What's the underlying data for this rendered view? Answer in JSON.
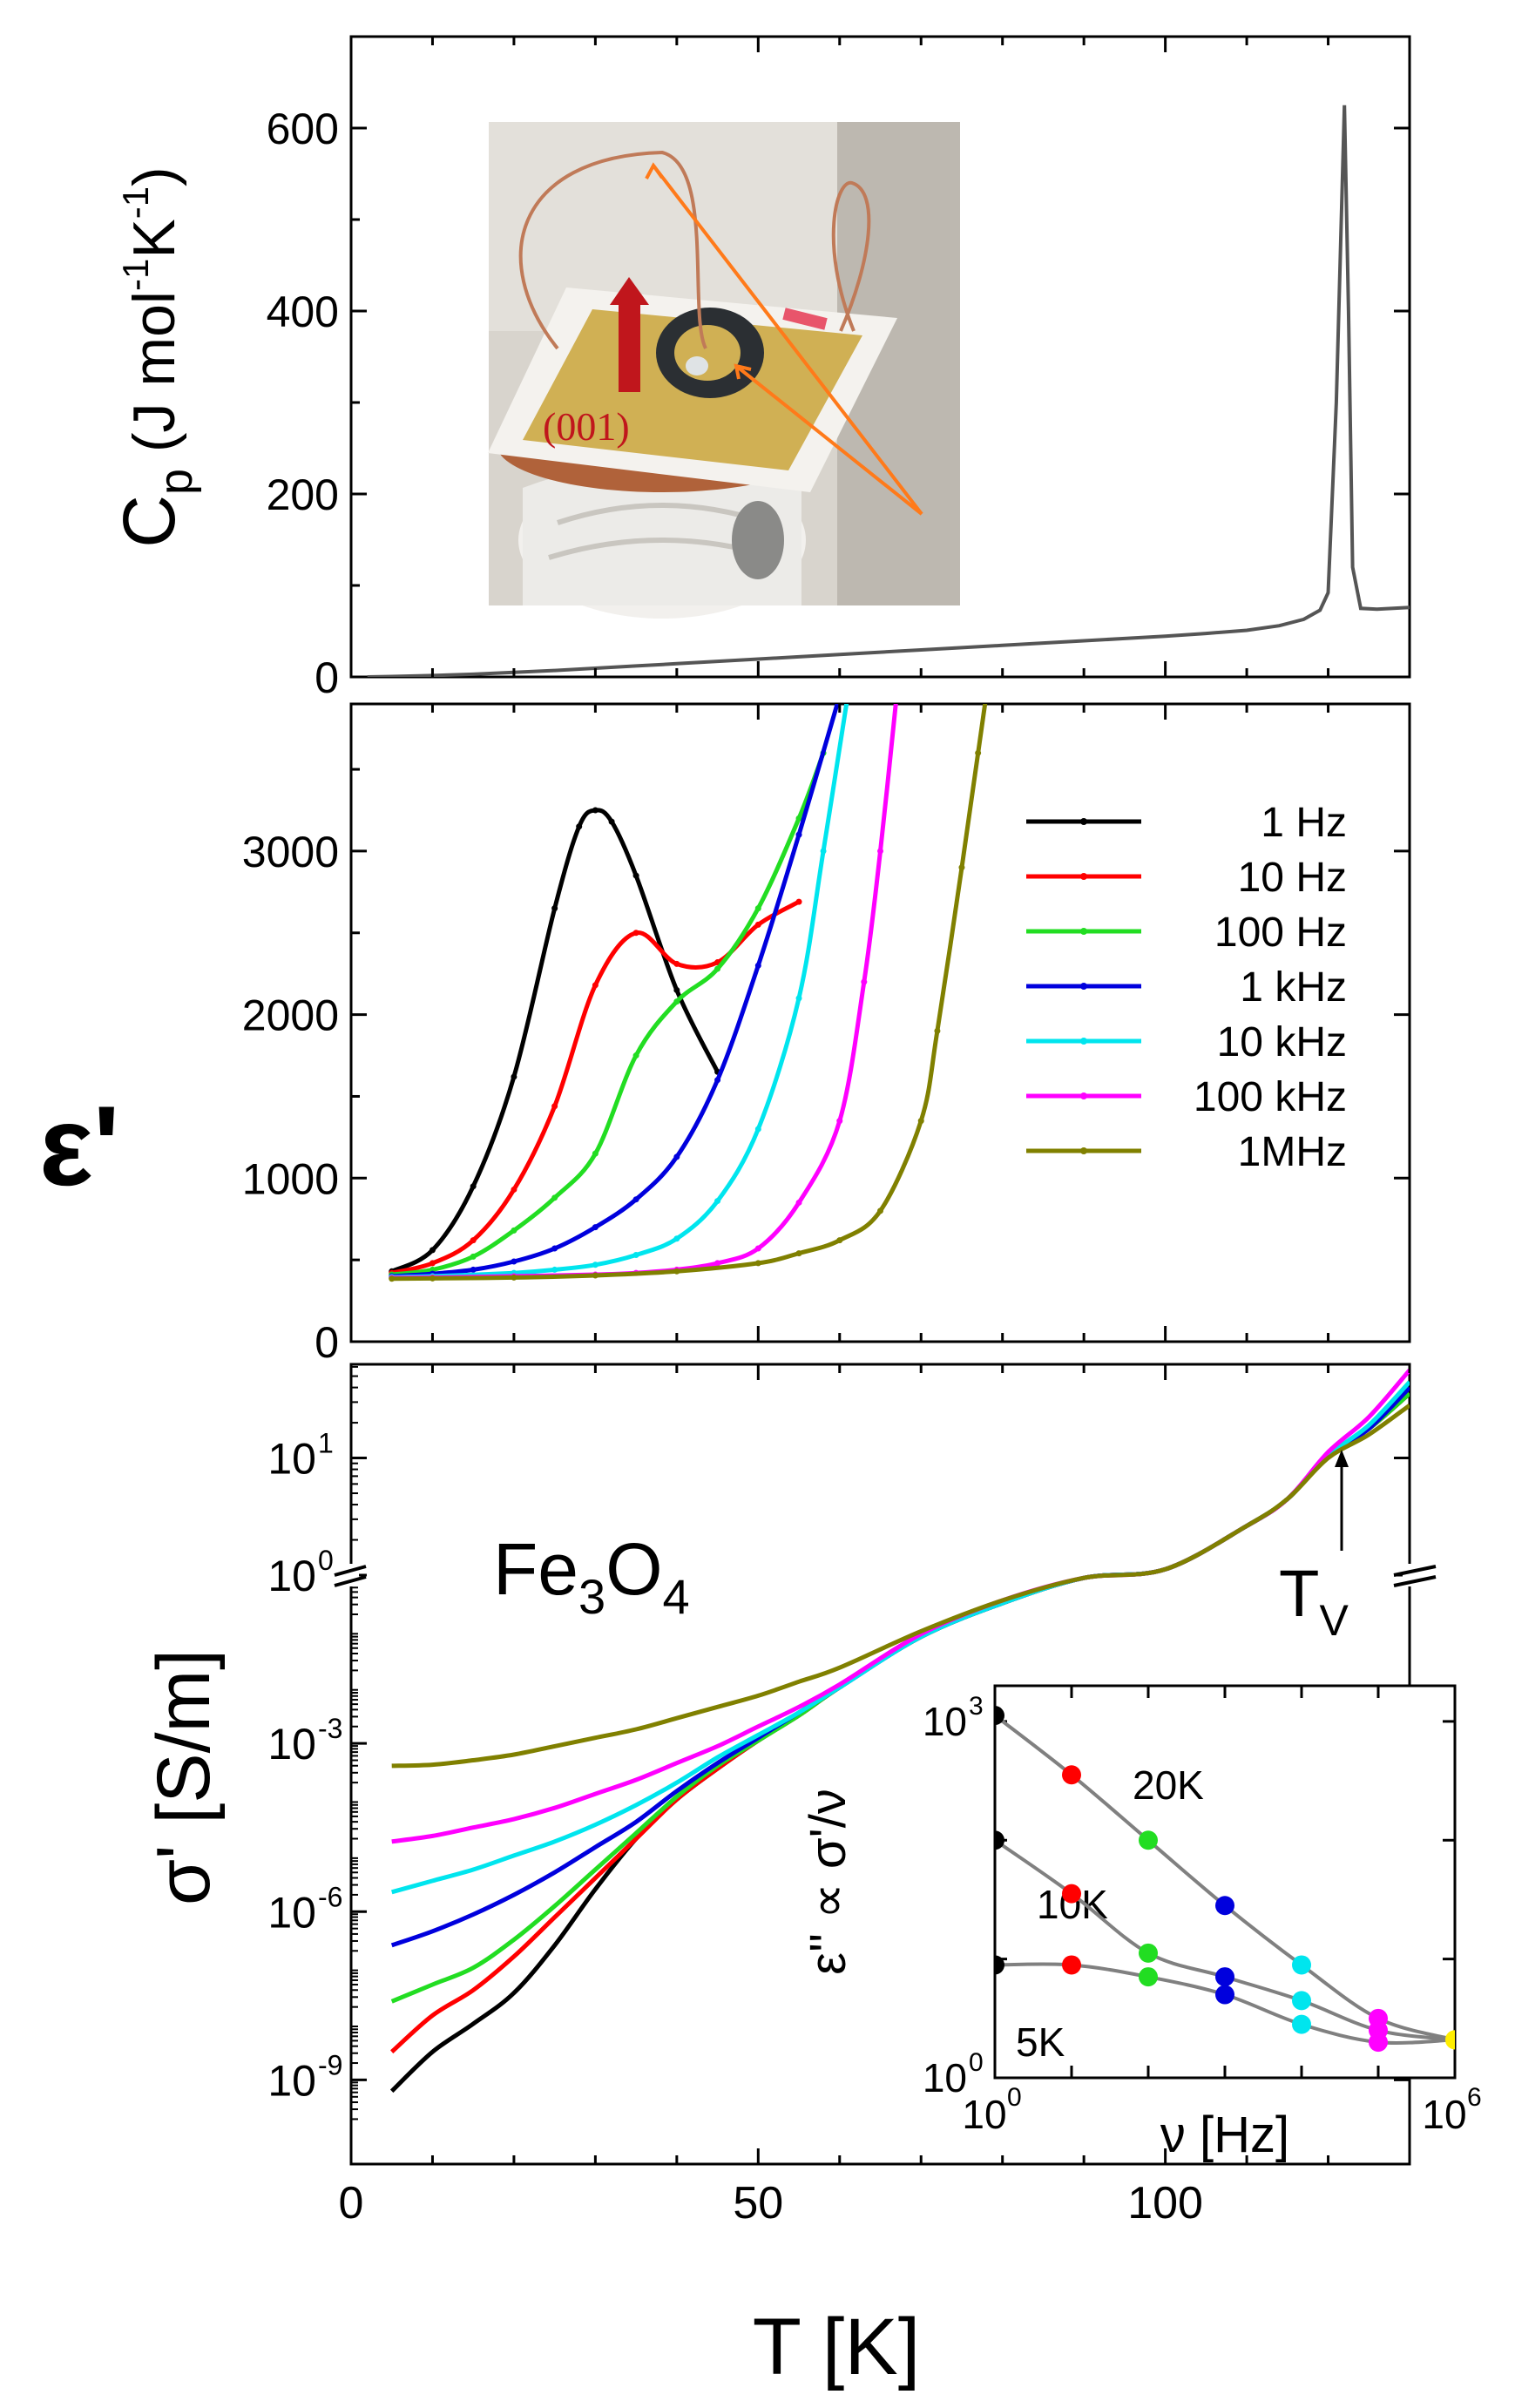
{
  "chart_data": [
    {
      "id": "panel_cp",
      "type": "line",
      "ylabel": "C_p (J mol^-1 K^-1)",
      "ylabel_parts": [
        "C",
        "p",
        " (J mol",
        "-1",
        "K",
        "-1",
        ")"
      ],
      "xlim": [
        0,
        130
      ],
      "ylim": [
        0,
        700
      ],
      "yticks": [
        0,
        200,
        400,
        600
      ],
      "ytick_labels": [
        "0",
        "200",
        "400",
        "600"
      ],
      "series": [
        {
          "name": "Cp",
          "color": "#555555",
          "x": [
            2,
            5,
            10,
            15,
            20,
            25,
            30,
            35,
            40,
            45,
            50,
            55,
            60,
            65,
            70,
            75,
            80,
            85,
            90,
            95,
            100,
            105,
            110,
            114,
            117,
            119,
            120,
            121,
            122,
            122.5,
            123,
            124,
            126,
            130
          ],
          "y": [
            0,
            0.5,
            1.5,
            3,
            5,
            7,
            9.5,
            12,
            14.5,
            17,
            19.5,
            22,
            24.5,
            27,
            29.5,
            32,
            34.5,
            37,
            39.5,
            42,
            44.5,
            47.5,
            51,
            56,
            63,
            73,
            92,
            300,
            625,
            400,
            120,
            75,
            74,
            76
          ]
        }
      ],
      "inset_photo": {
        "description_label": "(001)",
        "label_color": "#c0161c"
      }
    },
    {
      "id": "panel_eps",
      "type": "line",
      "ylabel": "ε'",
      "xlim": [
        0,
        130
      ],
      "ylim": [
        0,
        3900
      ],
      "yticks": [
        0,
        1000,
        2000,
        3000
      ],
      "ytick_labels": [
        "0",
        "1000",
        "2000",
        "3000"
      ],
      "legend_position": "right",
      "series": [
        {
          "name": "1 Hz",
          "color": "#000000",
          "x": [
            5,
            10,
            15,
            20,
            25,
            28,
            30,
            32,
            35,
            40,
            45
          ],
          "y": [
            430,
            560,
            950,
            1620,
            2650,
            3150,
            3250,
            3180,
            2850,
            2150,
            1650
          ]
        },
        {
          "name": "10 Hz",
          "color": "#ff0000",
          "x": [
            5,
            10,
            15,
            20,
            25,
            30,
            35,
            40,
            45,
            50,
            55
          ],
          "y": [
            420,
            480,
            620,
            930,
            1440,
            2180,
            2500,
            2310,
            2320,
            2550,
            2690
          ]
        },
        {
          "name": "100 Hz",
          "color": "#22dd22",
          "x": [
            5,
            10,
            15,
            20,
            25,
            30,
            35,
            40,
            45,
            50,
            55,
            58
          ],
          "y": [
            410,
            440,
            520,
            680,
            880,
            1150,
            1750,
            2080,
            2280,
            2650,
            3200,
            3600
          ]
        },
        {
          "name": "1 kHz",
          "color": "#0000dd",
          "x": [
            5,
            10,
            15,
            20,
            25,
            30,
            35,
            40,
            45,
            50,
            55,
            60
          ],
          "y": [
            400,
            415,
            440,
            490,
            570,
            700,
            870,
            1130,
            1600,
            2300,
            3100,
            3950
          ]
        },
        {
          "name": "10 kHz",
          "color": "#00e5ee",
          "x": [
            5,
            10,
            20,
            25,
            30,
            35,
            40,
            45,
            50,
            55,
            58,
            61
          ],
          "y": [
            395,
            400,
            420,
            440,
            470,
            530,
            630,
            860,
            1300,
            2100,
            3000,
            3950
          ]
        },
        {
          "name": "100 kHz",
          "color": "#ff00ff",
          "x": [
            5,
            10,
            20,
            30,
            35,
            40,
            45,
            50,
            55,
            60,
            63,
            65,
            67
          ],
          "y": [
            390,
            392,
            400,
            410,
            420,
            440,
            480,
            570,
            850,
            1350,
            2200,
            3000,
            3950
          ]
        },
        {
          "name": "1MHz",
          "color": "#808000",
          "x": [
            5,
            10,
            20,
            30,
            40,
            50,
            55,
            60,
            65,
            70,
            72,
            75,
            77,
            78
          ],
          "y": [
            385,
            387,
            392,
            405,
            430,
            480,
            540,
            620,
            800,
            1350,
            1900,
            2900,
            3600,
            3950
          ]
        }
      ]
    },
    {
      "id": "panel_sigma",
      "type": "line",
      "yscale": "log",
      "ylabel": "σ' [S/m]",
      "xlabel": "T [K]",
      "xlim": [
        0,
        130
      ],
      "xticks": [
        0,
        50,
        100
      ],
      "xtick_labels": [
        "0",
        "50",
        "100"
      ],
      "ylim_lower": [
        -10.5,
        0
      ],
      "ylim_upper": [
        0,
        1.8
      ],
      "ytick_labels": [
        "10",
        "10",
        "10",
        "10",
        "10"
      ],
      "ytick_exponents": [
        "-9",
        "-6",
        "-3",
        "0",
        "1"
      ],
      "annotations": {
        "material_main": "Fe",
        "material_sub1": "3",
        "material_mid": "O",
        "material_sub2": "4",
        "tv_main": "T",
        "tv_sub": "V",
        "tv_temperature_K": 122
      },
      "series": [
        {
          "name": "1 Hz",
          "color": "#000000",
          "x": [
            5,
            10,
            15,
            20,
            25,
            30,
            35,
            40,
            45,
            50,
            55,
            60,
            70,
            80,
            90,
            100,
            110,
            115,
            120,
            125,
            130
          ],
          "y_log10": [
            -9.2,
            -8.5,
            -8.0,
            -7.45,
            -6.6,
            -5.6,
            -4.7,
            -4.0,
            -3.45,
            -2.95,
            -2.5,
            -2.0,
            -1.1,
            -0.5,
            -0.05,
            0.05,
            0.42,
            0.65,
            1.02,
            1.25,
            1.55
          ]
        },
        {
          "name": "10 Hz",
          "color": "#ff0000",
          "x": [
            5,
            10,
            15,
            20,
            25,
            30,
            35,
            40,
            45,
            50,
            55,
            60,
            70,
            80,
            90,
            100,
            110,
            115,
            120,
            125,
            130
          ],
          "y_log10": [
            -8.5,
            -7.85,
            -7.4,
            -6.8,
            -6.1,
            -5.4,
            -4.7,
            -4.0,
            -3.45,
            -2.95,
            -2.5,
            -2.0,
            -1.1,
            -0.5,
            -0.05,
            0.05,
            0.42,
            0.65,
            1.02,
            1.25,
            1.55
          ]
        },
        {
          "name": "100 Hz",
          "color": "#22dd22",
          "x": [
            5,
            10,
            15,
            20,
            25,
            30,
            35,
            40,
            45,
            50,
            55,
            60,
            70,
            80,
            90,
            100,
            110,
            115,
            120,
            125,
            130
          ],
          "y_log10": [
            -7.6,
            -7.3,
            -7.0,
            -6.5,
            -5.9,
            -5.25,
            -4.6,
            -3.95,
            -3.4,
            -2.95,
            -2.5,
            -2.0,
            -1.1,
            -0.5,
            -0.05,
            0.05,
            0.42,
            0.65,
            1.02,
            1.25,
            1.55
          ]
        },
        {
          "name": "1 kHz",
          "color": "#0000dd",
          "x": [
            5,
            10,
            15,
            20,
            25,
            30,
            35,
            40,
            45,
            50,
            55,
            60,
            70,
            80,
            90,
            100,
            110,
            115,
            120,
            125,
            130
          ],
          "y_log10": [
            -6.6,
            -6.35,
            -6.05,
            -5.7,
            -5.3,
            -4.85,
            -4.4,
            -3.85,
            -3.35,
            -2.9,
            -2.45,
            -2.0,
            -1.1,
            -0.5,
            -0.05,
            0.05,
            0.42,
            0.65,
            1.02,
            1.25,
            1.6
          ]
        },
        {
          "name": "10 kHz",
          "color": "#00e5ee",
          "x": [
            5,
            10,
            15,
            20,
            25,
            30,
            35,
            40,
            45,
            50,
            55,
            60,
            70,
            80,
            90,
            100,
            110,
            115,
            120,
            125,
            130
          ],
          "y_log10": [
            -5.65,
            -5.45,
            -5.25,
            -5.0,
            -4.75,
            -4.45,
            -4.1,
            -3.7,
            -3.25,
            -2.85,
            -2.45,
            -2.0,
            -1.1,
            -0.5,
            -0.05,
            0.05,
            0.42,
            0.65,
            1.02,
            1.28,
            1.65
          ]
        },
        {
          "name": "100 kHz",
          "color": "#ff00ff",
          "x": [
            5,
            10,
            15,
            20,
            25,
            30,
            35,
            40,
            45,
            50,
            55,
            60,
            70,
            80,
            90,
            100,
            110,
            115,
            120,
            125,
            130
          ],
          "y_log10": [
            -4.75,
            -4.65,
            -4.5,
            -4.35,
            -4.15,
            -3.9,
            -3.65,
            -3.35,
            -3.05,
            -2.7,
            -2.35,
            -1.95,
            -1.05,
            -0.45,
            -0.05,
            0.05,
            0.42,
            0.65,
            1.05,
            1.35,
            1.75
          ]
        },
        {
          "name": "1MHz",
          "color": "#808000",
          "x": [
            5,
            10,
            15,
            20,
            25,
            30,
            35,
            40,
            45,
            50,
            55,
            60,
            70,
            80,
            90,
            100,
            110,
            115,
            120,
            125,
            130
          ],
          "y_log10": [
            -3.4,
            -3.38,
            -3.3,
            -3.2,
            -3.05,
            -2.9,
            -2.75,
            -2.55,
            -2.35,
            -2.15,
            -1.9,
            -1.65,
            -1.0,
            -0.45,
            -0.05,
            0.05,
            0.42,
            0.65,
            1.0,
            1.2,
            1.45
          ]
        }
      ]
    },
    {
      "id": "inset_loss",
      "type": "scatter",
      "xscale": "log",
      "yscale": "log",
      "xlabel": "ν [Hz]",
      "ylabel": "ε'' ∝ σ'/ν",
      "xlim_log10": [
        0,
        6
      ],
      "ylim_log10": [
        0,
        3.3
      ],
      "xtick_labels": [
        "10",
        "10"
      ],
      "xtick_exponents": [
        "0",
        "6"
      ],
      "ytick_labels": [
        "10",
        "10"
      ],
      "ytick_exponents": [
        "0",
        "3"
      ],
      "point_colors_by_frequency": [
        "#000000",
        "#ff0000",
        "#22dd22",
        "#0000dd",
        "#00e5ee",
        "#ff00ff",
        "#ffee00"
      ],
      "series": [
        {
          "name": "20K",
          "x_log10": [
            0,
            1,
            2,
            3,
            4,
            5,
            6
          ],
          "y_log10": [
            3.05,
            2.55,
            2.0,
            1.45,
            0.95,
            0.5,
            0.32
          ]
        },
        {
          "name": "10K",
          "x_log10": [
            0,
            1,
            2,
            3,
            4,
            5,
            6
          ],
          "y_log10": [
            2.0,
            1.55,
            1.05,
            0.85,
            0.65,
            0.4,
            0.32
          ]
        },
        {
          "name": "5K",
          "x_log10": [
            0,
            1,
            2,
            3,
            4,
            5,
            6
          ],
          "y_log10": [
            0.95,
            0.95,
            0.85,
            0.7,
            0.45,
            0.3,
            0.32
          ]
        }
      ]
    }
  ]
}
